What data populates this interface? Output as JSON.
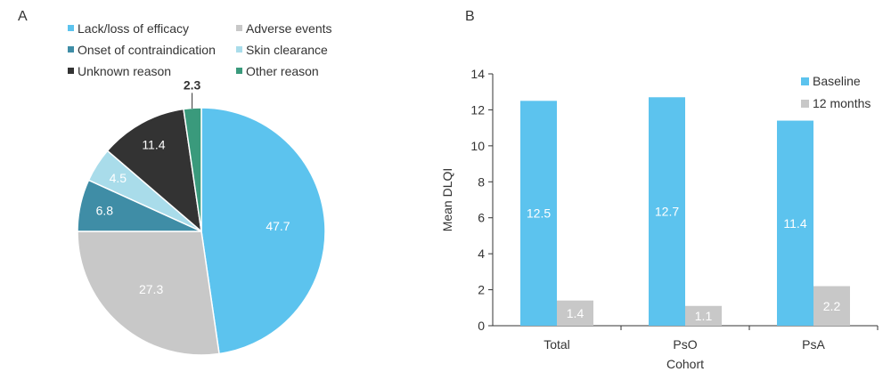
{
  "chart_data": [
    {
      "panel": "A",
      "type": "pie",
      "start": "top",
      "direction": "clockwise",
      "legend_position": "top",
      "slices": [
        {
          "label": "Lack/loss of efficacy",
          "value": 47.7,
          "color": "#5cc3ee"
        },
        {
          "label": "Adverse events",
          "value": 27.3,
          "color": "#c8c8c8"
        },
        {
          "label": "Onset of contraindication",
          "value": 6.8,
          "color": "#3f8da6"
        },
        {
          "label": "Skin clearance",
          "value": 4.5,
          "color": "#a9dcea"
        },
        {
          "label": "Unknown reason",
          "value": 11.4,
          "color": "#333333"
        },
        {
          "label": "Other reason",
          "value": 2.3,
          "color": "#3a9a7c"
        }
      ],
      "legend_order": [
        0,
        1,
        2,
        3,
        4,
        5
      ]
    },
    {
      "panel": "B",
      "type": "bar",
      "xlabel": "Cohort",
      "ylabel": "Mean DLQI",
      "ylim": [
        0,
        14
      ],
      "yticks": [
        0,
        2,
        4,
        6,
        8,
        10,
        12,
        14
      ],
      "grid": false,
      "legend_position": "top-right",
      "categories": [
        "Total",
        "PsO",
        "PsA"
      ],
      "series": [
        {
          "name": "Baseline",
          "values": [
            12.5,
            12.7,
            11.4
          ],
          "color": "#5cc3ee"
        },
        {
          "name": "12 months",
          "values": [
            1.4,
            1.1,
            2.2
          ],
          "color": "#c8c8c8"
        }
      ]
    }
  ]
}
